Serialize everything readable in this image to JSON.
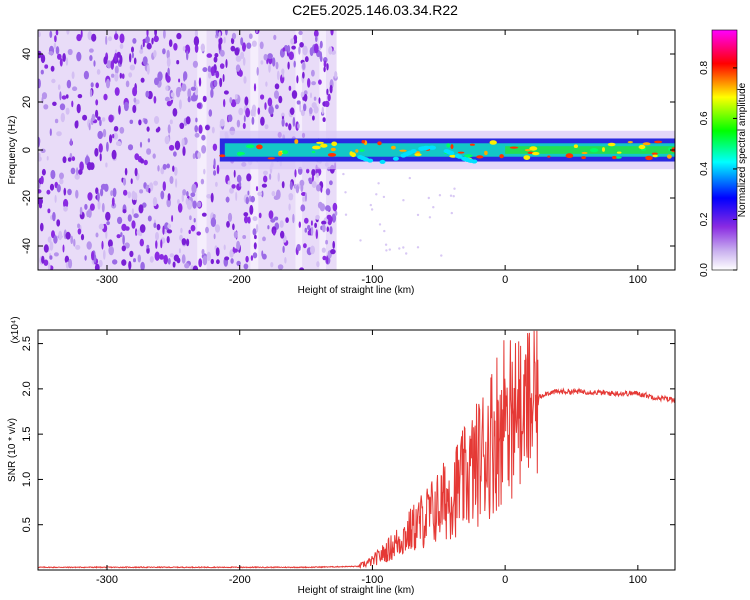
{
  "title": "C2E5.2025.146.03.34.R22",
  "chart_data": [
    {
      "type": "heatmap",
      "title": "C2E5.2025.146.03.34.R22",
      "xlabel": "Height of straight line (km)",
      "ylabel": "Frequency (Hz)",
      "xlim": [
        -352,
        128
      ],
      "ylim": [
        -50,
        50
      ],
      "xticks": [
        -300,
        -200,
        -100,
        0,
        100
      ],
      "yticks": [
        -40,
        -20,
        0,
        20,
        40
      ],
      "colorbar": {
        "label": "Normalized spectral amplitude",
        "range": [
          0.0,
          0.95
        ],
        "ticks": [
          "0.0",
          "0.2",
          "0.4",
          "0.6",
          "0.8"
        ],
        "colors": [
          "#ffffff",
          "#8a2be2",
          "#0000ff",
          "#00ffff",
          "#00ff00",
          "#ffff00",
          "#ff0000",
          "#ff00ff"
        ]
      },
      "features": {
        "noise_region_x": [
          -352,
          -127
        ],
        "signal_start_x": -215,
        "signal_center_frequency": 0,
        "signal_bandwidth_hz": 8
      },
      "grid": false
    },
    {
      "type": "line",
      "xlabel": "Height of straight line (km)",
      "ylabel": "SNR (10 * v/v)",
      "y_multiplier": "(x10⁴)",
      "xlim": [
        -352,
        128
      ],
      "ylim": [
        0,
        2.65
      ],
      "xticks": [
        -300,
        -200,
        -100,
        0,
        100
      ],
      "yticks": [
        0.5,
        1.0,
        1.5,
        2.0,
        2.5
      ],
      "series": [
        {
          "color": "#e53935",
          "x": [
            -352,
            -300,
            -250,
            -200,
            -150,
            -110,
            -100,
            -90,
            -80,
            -70,
            -60,
            -50,
            -40,
            -30,
            -20,
            -10,
            0,
            10,
            20,
            30,
            40,
            60,
            80,
            100,
            115,
            128
          ],
          "values": [
            0.03,
            0.03,
            0.03,
            0.03,
            0.03,
            0.04,
            0.1,
            0.2,
            0.32,
            0.45,
            0.58,
            0.7,
            0.85,
            1.0,
            1.2,
            1.45,
            1.75,
            1.65,
            1.85,
            1.95,
            1.97,
            1.97,
            1.95,
            1.95,
            1.9,
            1.88
          ]
        }
      ],
      "grid": false
    }
  ]
}
